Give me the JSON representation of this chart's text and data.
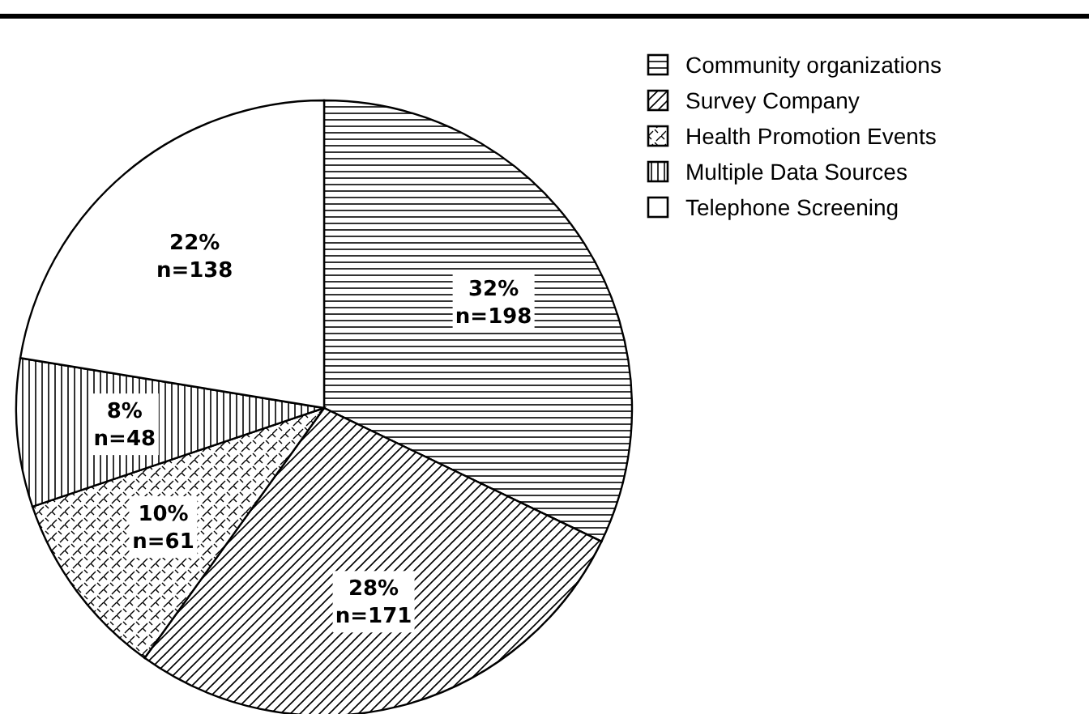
{
  "chart_data": {
    "type": "pie",
    "categories": [
      "Community organizations",
      "Survey Company",
      "Health Promotion Events",
      "Multiple Data Sources",
      "Telephone Screening"
    ],
    "values": [
      198,
      171,
      61,
      48,
      138
    ],
    "value_labels": [
      "32%\nn=198",
      "28%\nn=171",
      "10%\nn=61",
      "8%\nn=48",
      "22%\nn=138"
    ],
    "colors": [
      "#000000",
      "#000000",
      "#000000",
      "#000000",
      "#ffffff"
    ],
    "legend": "top right"
  }
}
